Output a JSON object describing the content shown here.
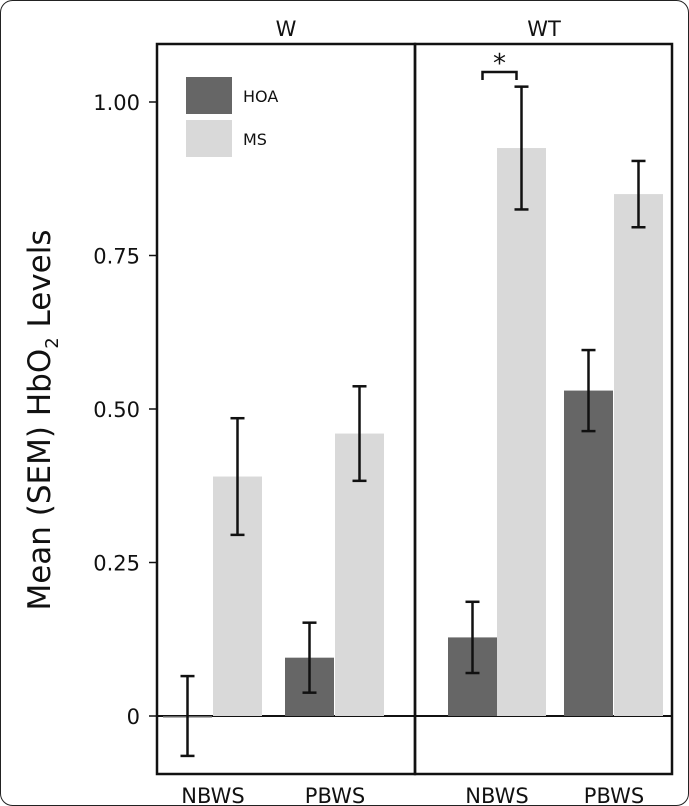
{
  "chart_data": {
    "type": "bar",
    "ylabel_main": "Mean (SEM) HbO",
    "ylabel_sub": "2",
    "ylabel_tail": " Levels",
    "ylim": [
      -0.095,
      1.09
    ],
    "yticks": [
      0,
      0.25,
      0.5,
      0.75,
      1.0
    ],
    "ytick_labels": [
      "0",
      "0.25",
      "0.50",
      "0.75",
      "1.00"
    ],
    "legend": [
      {
        "name": "HOA",
        "color": "#666666"
      },
      {
        "name": "MS",
        "color": "#d9d9d9"
      }
    ],
    "panels": [
      {
        "title": "W",
        "categories": [
          "NBWS",
          "PBWS"
        ],
        "series": [
          {
            "name": "HOA",
            "values": [
              0.0,
              0.095
            ],
            "errors": [
              0.065,
              0.057
            ]
          },
          {
            "name": "MS",
            "values": [
              0.39,
              0.46
            ],
            "errors": [
              0.095,
              0.077
            ]
          }
        ],
        "annotation": null
      },
      {
        "title": "WT",
        "categories": [
          "NBWS",
          "PBWS"
        ],
        "series": [
          {
            "name": "HOA",
            "values": [
              0.128,
              0.53
            ],
            "errors": [
              0.058,
              0.066
            ]
          },
          {
            "name": "MS",
            "values": [
              0.925,
              0.85
            ],
            "errors": [
              0.1,
              0.054
            ]
          }
        ],
        "annotation": "*"
      }
    ]
  }
}
